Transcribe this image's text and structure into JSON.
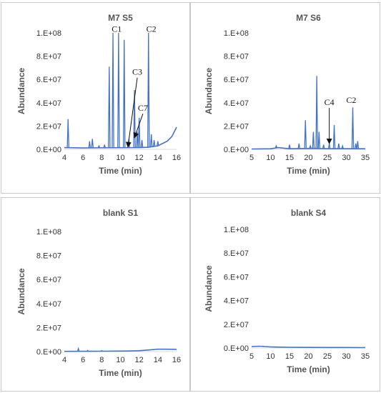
{
  "colors": {
    "series": "#4472C4",
    "axis": "#d9d9d9",
    "annotation": "#111111"
  },
  "chart_data": [
    {
      "type": "line",
      "title": "M7 S5",
      "xlabel": "Time (min)",
      "ylabel": "Abundance",
      "xlim": [
        4,
        16
      ],
      "ylim": [
        0,
        100000000
      ],
      "x_ticks": [
        4,
        6,
        8,
        10,
        12,
        14,
        16
      ],
      "x_tick_labels": [
        "4",
        "6",
        "8",
        "10",
        "12",
        "14",
        "16"
      ],
      "y_ticks": [
        0,
        20000000,
        40000000,
        60000000,
        80000000,
        100000000
      ],
      "y_tick_labels": [
        "0.E+00",
        "2.E+07",
        "4.E+07",
        "6.E+07",
        "8.E+07",
        "1.E+08"
      ],
      "baseline": [
        [
          4.0,
          1500000
        ],
        [
          6.0,
          1200000
        ],
        [
          8.0,
          1300000
        ],
        [
          10.0,
          1400000
        ],
        [
          12.0,
          1500000
        ],
        [
          13.0,
          1800000
        ],
        [
          14.0,
          3000000
        ],
        [
          15.0,
          7000000
        ],
        [
          15.5,
          11000000
        ],
        [
          16.0,
          19000000
        ]
      ],
      "peaks": [
        {
          "x": 4.4,
          "y": 26000000
        },
        {
          "x": 6.7,
          "y": 7000000
        },
        {
          "x": 7.0,
          "y": 9000000
        },
        {
          "x": 7.7,
          "y": 3000000
        },
        {
          "x": 8.3,
          "y": 4000000
        },
        {
          "x": 8.8,
          "y": 71000000
        },
        {
          "x": 9.2,
          "y": 100000000
        },
        {
          "x": 9.8,
          "y": 100000000
        },
        {
          "x": 10.4,
          "y": 94000000
        },
        {
          "x": 10.9,
          "y": 9000000
        },
        {
          "x": 11.5,
          "y": 51000000
        },
        {
          "x": 11.8,
          "y": 15000000
        },
        {
          "x": 12.0,
          "y": 27000000
        },
        {
          "x": 12.3,
          "y": 8000000
        },
        {
          "x": 13.0,
          "y": 100000000
        },
        {
          "x": 13.3,
          "y": 13000000
        },
        {
          "x": 13.6,
          "y": 8000000
        },
        {
          "x": 14.0,
          "y": 7000000
        }
      ],
      "annotations": [
        {
          "label": "C1",
          "x": 9.6,
          "y": 101000000
        },
        {
          "label": "C2",
          "x": 13.3,
          "y": 101000000
        },
        {
          "label": "C3",
          "x": 11.8,
          "y": 64000000,
          "arrow_to": [
            10.8,
            2000000
          ]
        },
        {
          "label": "C7",
          "x": 12.4,
          "y": 33000000,
          "arrow_to": [
            11.5,
            10000000
          ]
        }
      ]
    },
    {
      "type": "line",
      "title": "M7 S6",
      "xlabel": "Time (min)",
      "ylabel": "Abundance",
      "xlim": [
        5,
        35
      ],
      "ylim": [
        0,
        100000000
      ],
      "x_ticks": [
        5,
        10,
        15,
        20,
        25,
        30,
        35
      ],
      "x_tick_labels": [
        "5",
        "10",
        "15",
        "20",
        "25",
        "30",
        "35"
      ],
      "y_ticks": [
        0,
        20000000,
        40000000,
        60000000,
        80000000,
        100000000
      ],
      "y_tick_labels": [
        "0.E+00",
        "2.E+07",
        "4.E+07",
        "6.E+07",
        "8.E+07",
        "1.E+08"
      ],
      "baseline": [
        [
          5,
          300000
        ],
        [
          10,
          500000
        ],
        [
          12,
          1500000
        ],
        [
          15,
          500000
        ],
        [
          20,
          800000
        ],
        [
          25,
          600000
        ],
        [
          30,
          600000
        ],
        [
          35,
          500000
        ]
      ],
      "peaks": [
        {
          "x": 11.5,
          "y": 3000000
        },
        {
          "x": 15.0,
          "y": 4000000
        },
        {
          "x": 17.5,
          "y": 5000000
        },
        {
          "x": 19.2,
          "y": 25000000
        },
        {
          "x": 20.5,
          "y": 3000000
        },
        {
          "x": 21.3,
          "y": 15000000
        },
        {
          "x": 22.2,
          "y": 63000000
        },
        {
          "x": 22.8,
          "y": 15000000
        },
        {
          "x": 24.0,
          "y": 4000000
        },
        {
          "x": 25.5,
          "y": 5000000
        },
        {
          "x": 26.8,
          "y": 21000000
        },
        {
          "x": 28.0,
          "y": 5000000
        },
        {
          "x": 29.0,
          "y": 3000000
        },
        {
          "x": 31.7,
          "y": 36000000
        },
        {
          "x": 32.5,
          "y": 5000000
        },
        {
          "x": 33.0,
          "y": 7000000
        }
      ],
      "annotations": [
        {
          "label": "C4",
          "x": 25.5,
          "y": 38000000,
          "arrow_to": [
            25.5,
            5000000
          ]
        },
        {
          "label": "C2",
          "x": 31.3,
          "y": 40000000
        }
      ]
    },
    {
      "type": "line",
      "title": "blank S1",
      "xlabel": "Time (min)",
      "ylabel": "Abundance",
      "xlim": [
        4,
        16
      ],
      "ylim": [
        0,
        100000000
      ],
      "x_ticks": [
        4,
        6,
        8,
        10,
        12,
        14,
        16
      ],
      "x_tick_labels": [
        "4",
        "6",
        "8",
        "10",
        "12",
        "14",
        "16"
      ],
      "y_ticks": [
        0,
        20000000,
        40000000,
        60000000,
        80000000,
        100000000
      ],
      "y_tick_labels": [
        "0.E+00",
        "2.E+07",
        "4.E+07",
        "6.E+07",
        "8.E+07",
        "1.E+08"
      ],
      "baseline": [
        [
          4.0,
          200000
        ],
        [
          8.0,
          300000
        ],
        [
          10.0,
          400000
        ],
        [
          11.0,
          500000
        ],
        [
          12.0,
          700000
        ],
        [
          13.0,
          1300000
        ],
        [
          14.0,
          2000000
        ],
        [
          15.0,
          2000000
        ],
        [
          16.0,
          1800000
        ]
      ],
      "peaks": [
        {
          "x": 5.5,
          "y": 2500000
        },
        {
          "x": 6.5,
          "y": 1000000
        },
        {
          "x": 8.0,
          "y": 800000
        }
      ],
      "annotations": []
    },
    {
      "type": "line",
      "title": "blank S4",
      "xlabel": "Time (min)",
      "ylabel": "Abundance",
      "xlim": [
        5,
        35
      ],
      "ylim": [
        0,
        100000000
      ],
      "x_ticks": [
        5,
        10,
        15,
        20,
        25,
        30,
        35
      ],
      "x_tick_labels": [
        "5",
        "10",
        "15",
        "20",
        "25",
        "30",
        "35"
      ],
      "y_ticks": [
        0,
        20000000,
        40000000,
        60000000,
        80000000,
        100000000
      ],
      "y_tick_labels": [
        "0.E+00",
        "2.E+07",
        "4.E+07",
        "6.E+07",
        "8.E+07",
        "1.E+08"
      ],
      "baseline": [
        [
          5,
          1200000
        ],
        [
          7,
          1500000
        ],
        [
          10,
          900000
        ],
        [
          15,
          600000
        ],
        [
          20,
          500000
        ],
        [
          25,
          400000
        ],
        [
          30,
          400000
        ],
        [
          35,
          300000
        ]
      ],
      "peaks": [
        {
          "x": 8.0,
          "y": 1600000
        }
      ],
      "annotations": []
    }
  ]
}
